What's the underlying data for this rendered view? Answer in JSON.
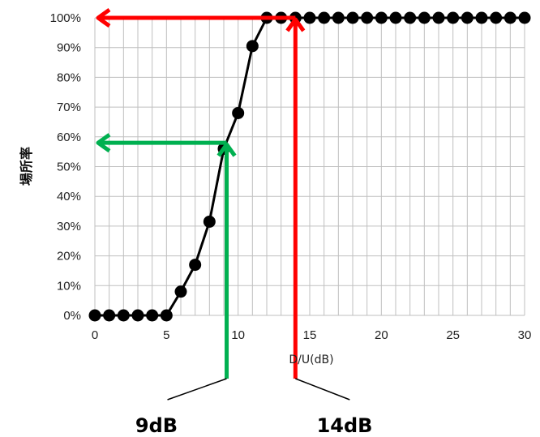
{
  "chart_data": {
    "type": "line",
    "xlabel": "D/U(dB)",
    "ylabel": "場所率",
    "xlim": [
      0,
      30
    ],
    "ylim": [
      0,
      100
    ],
    "x_ticks": [
      "0",
      "5",
      "10",
      "15",
      "20",
      "25",
      "30"
    ],
    "y_ticks": [
      "0%",
      "10%",
      "20%",
      "30%",
      "40%",
      "50%",
      "60%",
      "70%",
      "80%",
      "90%",
      "100%"
    ],
    "grid": true,
    "series": [
      {
        "x": [
          0,
          1,
          2,
          3,
          4,
          5,
          6,
          7,
          8,
          9,
          10,
          11,
          12,
          13,
          14,
          15,
          16,
          17,
          18,
          19,
          20,
          21,
          22,
          23,
          24,
          25,
          26,
          27,
          28,
          29,
          30
        ],
        "y": [
          0,
          0,
          0,
          0,
          0,
          0,
          8,
          17,
          31.5,
          56,
          68,
          90.5,
          100,
          100,
          100,
          100,
          100,
          100,
          100,
          100,
          100,
          100,
          100,
          100,
          100,
          100,
          100,
          100,
          100,
          100,
          100
        ],
        "color": "#000000"
      }
    ],
    "annotations": [
      {
        "label": "9dB",
        "x": 9.2,
        "y": 58,
        "color": "#00b050"
      },
      {
        "label": "14dB",
        "x": 14,
        "y": 100,
        "color": "#ff0000"
      }
    ]
  }
}
